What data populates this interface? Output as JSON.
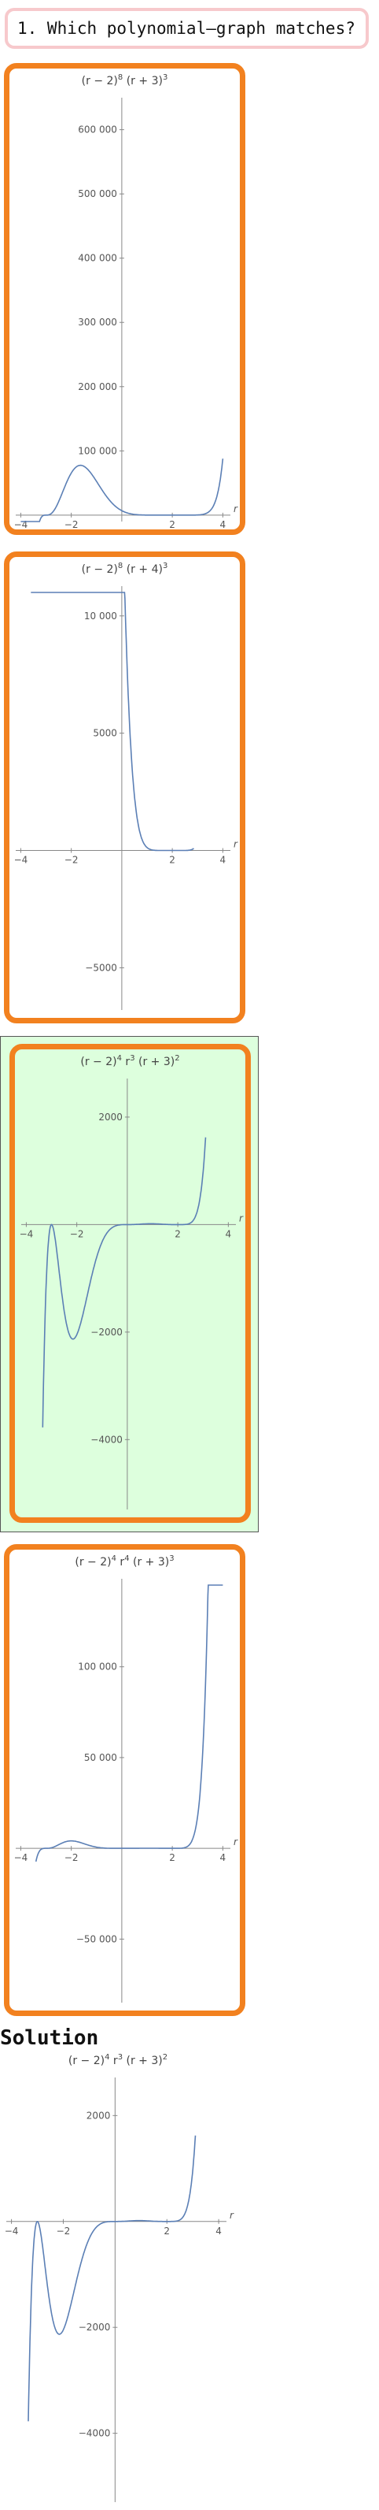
{
  "question": {
    "text": "1. Which polynomial–graph matches?"
  },
  "solution_label": "Solution",
  "chart_data": [
    {
      "type": "line",
      "title": "(r − 2)^8 (r + 3)^3",
      "title_parts": [
        "(r − 2)",
        "8",
        " (r + 3)",
        "3"
      ],
      "xlabel": "r",
      "xlim": [
        -4.2,
        4.3
      ],
      "ylim": [
        -10000,
        640000
      ],
      "x_ticks": [
        -4,
        -2,
        2,
        4
      ],
      "y_ticks": [
        100000,
        200000,
        300000,
        400000,
        500000,
        600000
      ],
      "y_tick_labels": [
        "100 000",
        "200 000",
        "300 000",
        "400 000",
        "500 000",
        "600 000"
      ],
      "series": [
        {
          "x_range": [
            -4.0,
            4.0
          ],
          "formula": "(r-2)^8 (r+3)^3"
        }
      ],
      "line_color": "#5b7fb5"
    },
    {
      "type": "line",
      "title": "(r − 2)^8 (r + 4)^3",
      "title_parts": [
        "(r − 2)",
        "8",
        " (r + 4)",
        "3"
      ],
      "xlabel": "r",
      "xlim": [
        -4.2,
        4.3
      ],
      "ylim": [
        -6800,
        11000
      ],
      "x_ticks": [
        -4,
        -2,
        2,
        4
      ],
      "y_ticks": [
        -5000,
        5000,
        10000
      ],
      "y_tick_labels": [
        "−5000",
        "5000",
        "10 000"
      ],
      "series": [
        {
          "x_range": [
            -3.6,
            2.85
          ],
          "formula": "(r-2)^8 (r+4)^3"
        }
      ],
      "line_color": "#5b7fb5"
    },
    {
      "type": "line",
      "title": "(r − 2)^4 r^3 (r + 3)^2",
      "title_parts": [
        "(r − 2)",
        "4",
        " r",
        "3",
        " (r + 3)",
        "2"
      ],
      "xlabel": "r",
      "xlim": [
        -4.2,
        4.3
      ],
      "ylim": [
        -5300,
        2600
      ],
      "x_ticks": [
        -4,
        -2,
        2,
        4
      ],
      "y_ticks": [
        -4000,
        -2000,
        2000
      ],
      "y_tick_labels": [
        "−4000",
        "−2000",
        "2000"
      ],
      "series": [
        {
          "x_range": [
            -3.35,
            3.1
          ],
          "formula": "(r-2)^4 r^3 (r+3)^2"
        }
      ],
      "line_color": "#5b7fb5",
      "selected": true
    },
    {
      "type": "line",
      "title": "(r − 2)^4 r^4 (r + 3)^3",
      "title_parts": [
        "(r − 2)",
        "4",
        " r",
        "4",
        " (r + 3)",
        "3"
      ],
      "xlabel": "r",
      "xlim": [
        -4.2,
        4.3
      ],
      "ylim": [
        -85000,
        145000
      ],
      "x_ticks": [
        -4,
        -2,
        2,
        4
      ],
      "y_ticks": [
        -50000,
        50000,
        100000
      ],
      "y_tick_labels": [
        "−50 000",
        "50 000",
        "100 000"
      ],
      "series": [
        {
          "x_range": [
            -3.4,
            4.0
          ],
          "formula": "(r-2)^4 r^4 (r+3)^3"
        }
      ],
      "line_color": "#5b7fb5"
    },
    {
      "type": "line",
      "title": "(r − 2)^4 r^3 (r + 3)^2",
      "title_parts": [
        "(r − 2)",
        "4",
        " r",
        "3",
        " (r + 3)",
        "2"
      ],
      "xlabel": "r",
      "xlim": [
        -4.2,
        4.3
      ],
      "ylim": [
        -5300,
        2600
      ],
      "x_ticks": [
        -4,
        -2,
        2,
        4
      ],
      "y_ticks": [
        -4000,
        -2000,
        2000
      ],
      "y_tick_labels": [
        "−4000",
        "−2000",
        "2000"
      ],
      "series": [
        {
          "x_range": [
            -3.35,
            3.1
          ],
          "formula": "(r-2)^4 r^3 (r+3)^2"
        }
      ],
      "line_color": "#5b7fb5"
    }
  ]
}
